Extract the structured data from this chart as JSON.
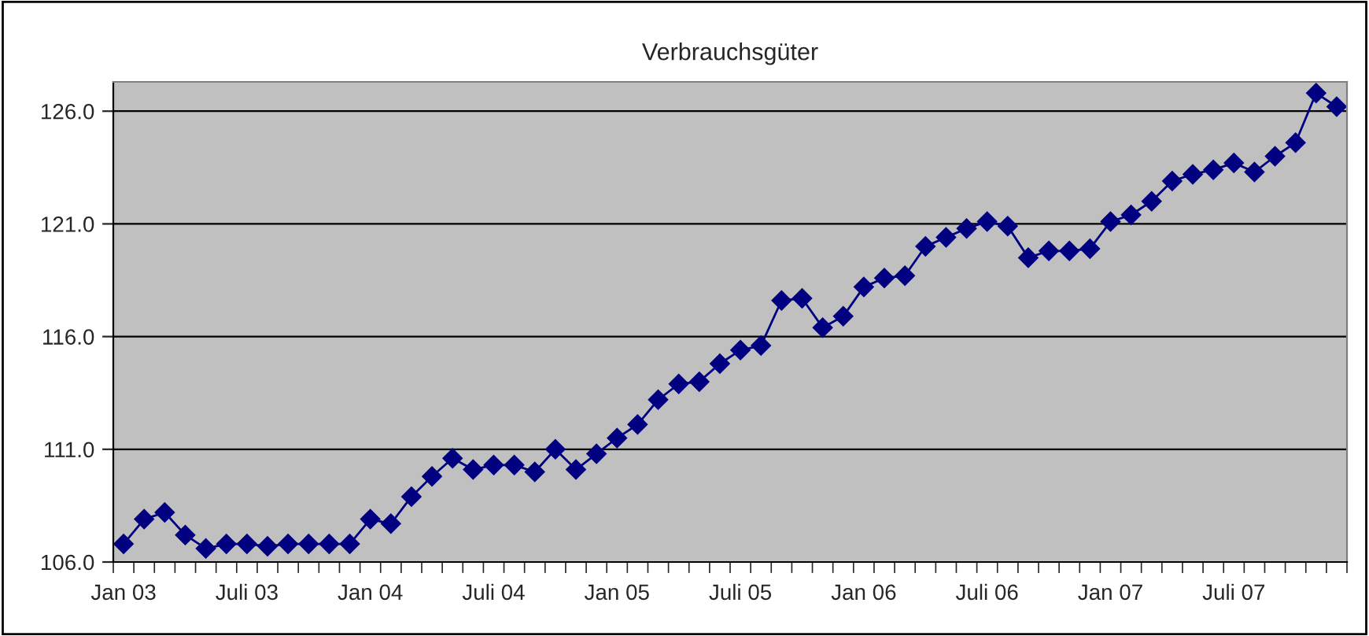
{
  "chart_data": {
    "type": "line",
    "title": "Verbrauchsgüter",
    "categories": [
      "Jan 03",
      null,
      null,
      null,
      null,
      null,
      "Juli 03",
      null,
      null,
      null,
      null,
      null,
      "Jan 04",
      null,
      null,
      null,
      null,
      null,
      "Juli 04",
      null,
      null,
      null,
      null,
      null,
      "Jan 05",
      null,
      null,
      null,
      null,
      null,
      "Juli 05",
      null,
      null,
      null,
      null,
      null,
      "Jan 06",
      null,
      null,
      null,
      null,
      null,
      "Juli 06",
      null,
      null,
      null,
      null,
      null,
      "Jan 07",
      null,
      null,
      null,
      null,
      null,
      "Juli 07",
      null,
      null,
      null,
      null,
      null
    ],
    "series": [
      {
        "color": "#000080",
        "values": [
          106.8,
          107.9,
          108.2,
          107.2,
          106.6,
          106.8,
          106.8,
          106.7,
          106.8,
          106.8,
          106.8,
          106.8,
          107.9,
          107.7,
          108.9,
          109.8,
          110.6,
          110.1,
          110.3,
          110.3,
          110.0,
          111.0,
          110.1,
          110.8,
          111.5,
          112.1,
          113.2,
          113.9,
          114.0,
          114.8,
          115.4,
          115.6,
          117.6,
          117.7,
          116.4,
          116.9,
          118.2,
          118.6,
          118.7,
          120.0,
          120.4,
          120.8,
          121.1,
          120.9,
          119.5,
          119.8,
          119.8,
          119.9,
          121.1,
          121.4,
          122.0,
          122.9,
          123.2,
          123.4,
          123.7,
          123.3,
          124.0,
          124.6,
          126.8,
          126.2
        ]
      }
    ],
    "ylim": [
      106,
      127.3
    ],
    "yticks": [
      {
        "value": 106,
        "label": "106.0"
      },
      {
        "value": 111,
        "label": "111.0"
      },
      {
        "value": 116,
        "label": "116.0"
      },
      {
        "value": 121,
        "label": "121.0"
      },
      {
        "value": 126,
        "label": "126.0"
      }
    ],
    "grid": "y",
    "marker": "diamond",
    "line_style": "solid"
  }
}
